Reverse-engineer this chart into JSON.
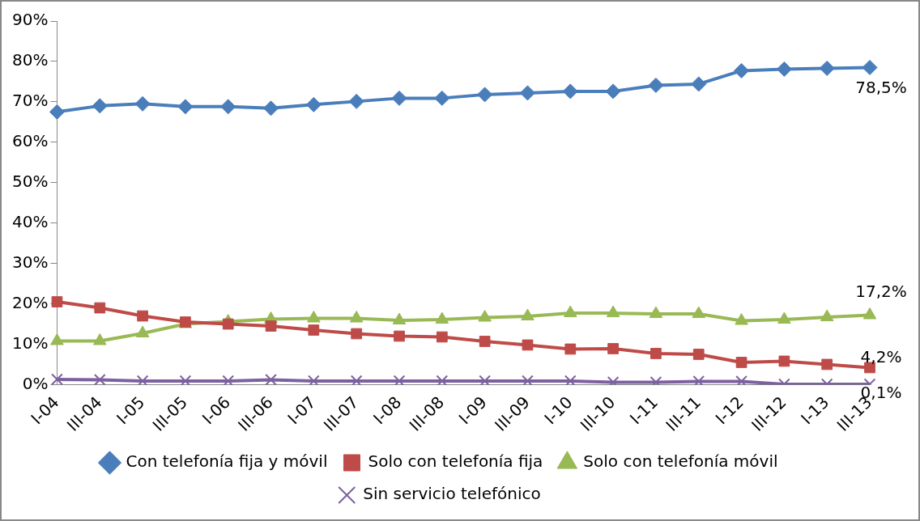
{
  "chart_data": {
    "type": "line",
    "categories": [
      "I-04",
      "III-04",
      "I-05",
      "III-05",
      "I-06",
      "III-06",
      "I-07",
      "III-07",
      "I-08",
      "III-08",
      "I-09",
      "III-09",
      "I-10",
      "III-10",
      "I-11",
      "III-11",
      "I-12",
      "III-12",
      "I-13",
      "III-13"
    ],
    "series": [
      {
        "name": "Con telefonía fija y móvil",
        "color": "#4a7ebb",
        "marker": "diamond",
        "values": [
          67.5,
          69.0,
          69.5,
          68.8,
          68.8,
          68.4,
          69.3,
          70.1,
          70.9,
          70.9,
          71.8,
          72.2,
          72.6,
          72.6,
          74.1,
          74.4,
          77.7,
          78.1,
          78.3,
          78.5
        ],
        "value_labels": [
          null,
          null,
          null,
          null,
          null,
          null,
          null,
          null,
          null,
          null,
          null,
          null,
          null,
          null,
          null,
          null,
          null,
          null,
          null,
          "78,5%"
        ]
      },
      {
        "name": "Solo con telefonía fija",
        "color": "#be4b48",
        "marker": "square",
        "values": [
          20.5,
          19.0,
          17.0,
          15.5,
          15.0,
          14.5,
          13.5,
          12.6,
          12.0,
          11.8,
          10.7,
          9.8,
          8.8,
          8.9,
          7.7,
          7.5,
          5.5,
          5.8,
          5.0,
          4.2
        ],
        "value_labels": [
          null,
          null,
          null,
          null,
          null,
          null,
          null,
          null,
          null,
          null,
          null,
          null,
          null,
          null,
          null,
          null,
          null,
          null,
          null,
          "4,2%"
        ]
      },
      {
        "name": "Solo con telefonía móvil",
        "color": "#98b954",
        "marker": "triangle",
        "values": [
          10.8,
          10.8,
          12.7,
          15.0,
          15.6,
          16.2,
          16.4,
          16.4,
          15.9,
          16.1,
          16.6,
          16.9,
          17.7,
          17.7,
          17.5,
          17.5,
          15.8,
          16.1,
          16.7,
          17.2
        ],
        "value_labels": [
          null,
          null,
          null,
          null,
          null,
          null,
          null,
          null,
          null,
          null,
          null,
          null,
          null,
          null,
          null,
          null,
          null,
          null,
          null,
          "17,2%"
        ]
      },
      {
        "name": "Sin servicio telefónico",
        "color": "#7d60a0",
        "marker": "cross",
        "values": [
          1.3,
          1.2,
          0.9,
          0.9,
          0.9,
          1.2,
          0.9,
          0.9,
          0.9,
          0.9,
          0.9,
          0.9,
          0.9,
          0.6,
          0.6,
          0.8,
          0.8,
          0.1,
          0.1,
          0.1
        ],
        "value_labels": [
          null,
          null,
          null,
          null,
          null,
          null,
          null,
          null,
          null,
          null,
          null,
          null,
          null,
          null,
          null,
          null,
          null,
          null,
          null,
          "0,1%"
        ]
      }
    ],
    "ylim": [
      0,
      90
    ],
    "yticks": [
      {
        "value": 0,
        "label": "0%"
      },
      {
        "value": 10,
        "label": "10%"
      },
      {
        "value": 20,
        "label": "20%"
      },
      {
        "value": 30,
        "label": "30%"
      },
      {
        "value": 40,
        "label": "40%"
      },
      {
        "value": 50,
        "label": "50%"
      },
      {
        "value": 60,
        "label": "60%"
      },
      {
        "value": 70,
        "label": "70%"
      },
      {
        "value": 80,
        "label": "80%"
      },
      {
        "value": 90,
        "label": "90%"
      }
    ],
    "grid": false,
    "legend": "bottom",
    "line_style": "solid"
  }
}
